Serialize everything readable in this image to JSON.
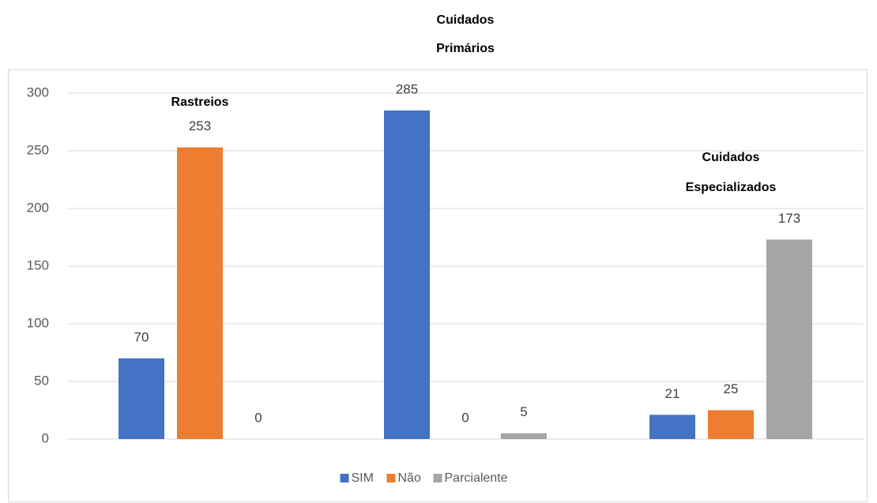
{
  "chart_data": {
    "type": "bar",
    "categories": [
      "Rastreios",
      "Cuidados Primários",
      "Cuidados Especializados"
    ],
    "series": [
      {
        "name": "SIM",
        "color": "#4472c4",
        "values": [
          70,
          285,
          21
        ]
      },
      {
        "name": "Não",
        "color": "#ed7d31",
        "values": [
          253,
          0,
          25
        ]
      },
      {
        "name": "Parcialente",
        "color": "#a5a5a5",
        "values": [
          0,
          5,
          173
        ]
      }
    ],
    "ylim": [
      0,
      300
    ],
    "yticks": [
      0,
      50,
      100,
      150,
      200,
      250,
      300
    ],
    "grid": true,
    "legend": "bottom"
  }
}
